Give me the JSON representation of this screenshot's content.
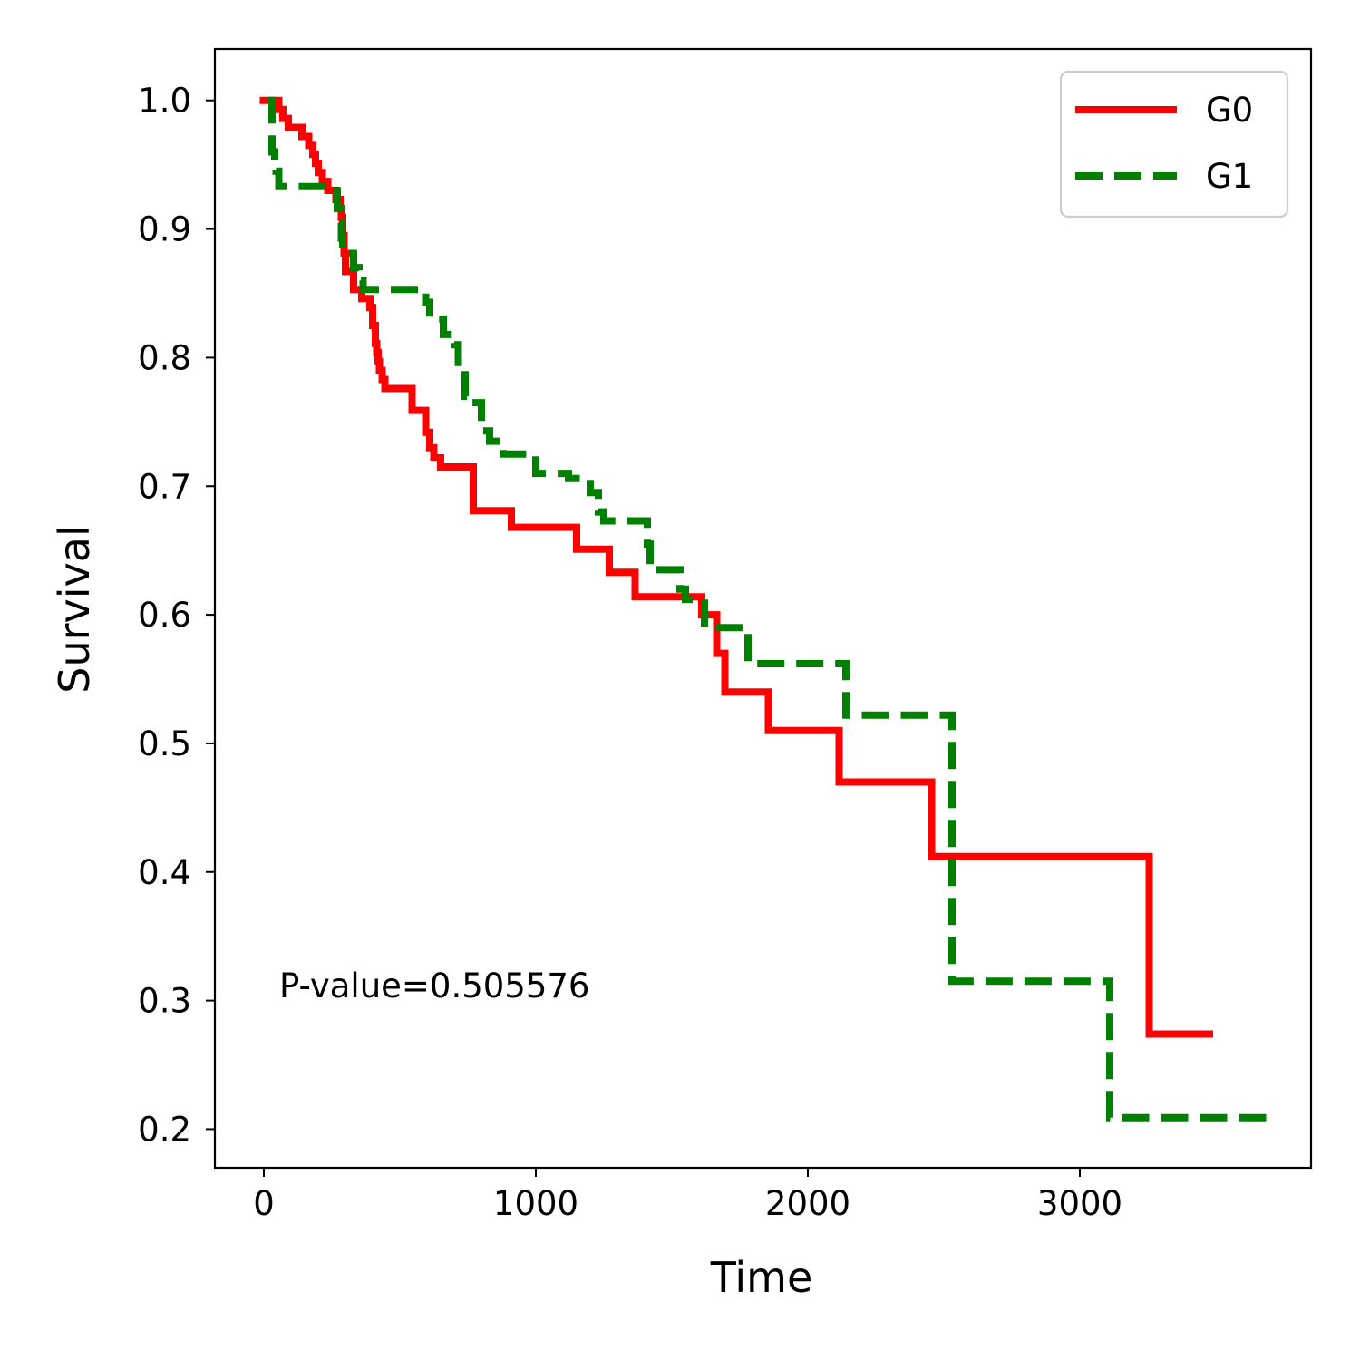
{
  "chart_data": {
    "type": "line",
    "step": "post",
    "xlabel": "Time",
    "ylabel": "Survival",
    "xlim": [
      -180,
      3850
    ],
    "ylim": [
      0.17,
      1.04
    ],
    "xticks": [
      0,
      1000,
      2000,
      3000
    ],
    "xtick_labels": [
      "0",
      "1000",
      "2000",
      "3000"
    ],
    "yticks": [
      0.2,
      0.3,
      0.4,
      0.5,
      0.6,
      0.7,
      0.8,
      0.9,
      1.0
    ],
    "ytick_labels": [
      "0.2",
      "0.3",
      "0.4",
      "0.5",
      "0.6",
      "0.7",
      "0.8",
      "0.9",
      "1.0"
    ],
    "grid": false,
    "legend_position": "top-right",
    "annotation": "P-value=0.505576",
    "series": [
      {
        "name": "G0",
        "color": "#ff0000",
        "dash": "solid",
        "points": [
          [
            -15,
            1.0
          ],
          [
            55,
            0.993
          ],
          [
            70,
            0.986
          ],
          [
            90,
            0.979
          ],
          [
            140,
            0.972
          ],
          [
            165,
            0.965
          ],
          [
            180,
            0.958
          ],
          [
            190,
            0.951
          ],
          [
            200,
            0.944
          ],
          [
            215,
            0.937
          ],
          [
            235,
            0.93
          ],
          [
            265,
            0.923
          ],
          [
            280,
            0.916
          ],
          [
            285,
            0.909
          ],
          [
            290,
            0.895
          ],
          [
            295,
            0.881
          ],
          [
            300,
            0.867
          ],
          [
            330,
            0.853
          ],
          [
            360,
            0.846
          ],
          [
            390,
            0.839
          ],
          [
            400,
            0.825
          ],
          [
            410,
            0.811
          ],
          [
            415,
            0.804
          ],
          [
            420,
            0.797
          ],
          [
            425,
            0.79
          ],
          [
            435,
            0.783
          ],
          [
            445,
            0.776
          ],
          [
            545,
            0.759
          ],
          [
            595,
            0.742
          ],
          [
            610,
            0.73
          ],
          [
            625,
            0.722
          ],
          [
            650,
            0.715
          ],
          [
            770,
            0.681
          ],
          [
            910,
            0.668
          ],
          [
            1150,
            0.651
          ],
          [
            1270,
            0.633
          ],
          [
            1365,
            0.614
          ],
          [
            1610,
            0.6
          ],
          [
            1665,
            0.57
          ],
          [
            1695,
            0.54
          ],
          [
            1855,
            0.51
          ],
          [
            2115,
            0.47
          ],
          [
            2455,
            0.412
          ],
          [
            3255,
            0.274
          ],
          [
            3490,
            0.274
          ]
        ]
      },
      {
        "name": "G1",
        "color": "#008000",
        "dash": "dashed",
        "points": [
          [
            15,
            1.0
          ],
          [
            30,
            0.96
          ],
          [
            40,
            0.95
          ],
          [
            45,
            0.945
          ],
          [
            55,
            0.933
          ],
          [
            270,
            0.916
          ],
          [
            280,
            0.905
          ],
          [
            285,
            0.893
          ],
          [
            290,
            0.881
          ],
          [
            330,
            0.87
          ],
          [
            350,
            0.86
          ],
          [
            365,
            0.853
          ],
          [
            595,
            0.843
          ],
          [
            610,
            0.83
          ],
          [
            660,
            0.818
          ],
          [
            700,
            0.81
          ],
          [
            715,
            0.79
          ],
          [
            740,
            0.77
          ],
          [
            755,
            0.765
          ],
          [
            800,
            0.743
          ],
          [
            830,
            0.735
          ],
          [
            880,
            0.725
          ],
          [
            1000,
            0.71
          ],
          [
            1120,
            0.706
          ],
          [
            1200,
            0.695
          ],
          [
            1230,
            0.68
          ],
          [
            1250,
            0.673
          ],
          [
            1410,
            0.655
          ],
          [
            1420,
            0.635
          ],
          [
            1530,
            0.62
          ],
          [
            1550,
            0.612
          ],
          [
            1620,
            0.59
          ],
          [
            1780,
            0.562
          ],
          [
            2140,
            0.522
          ],
          [
            2530,
            0.315
          ],
          [
            3110,
            0.209
          ],
          [
            3690,
            0.209
          ]
        ]
      }
    ]
  }
}
